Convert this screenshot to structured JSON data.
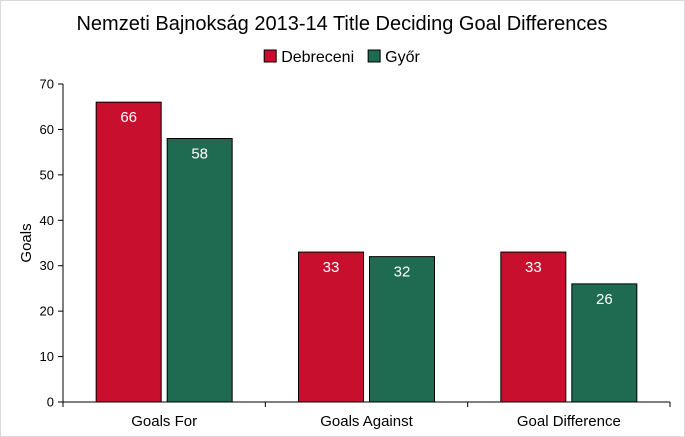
{
  "chart_data": {
    "type": "bar",
    "title": "Nemzeti Bajnokság 2013-14 Title Deciding Goal Differences",
    "xlabel": "",
    "ylabel": "Goals",
    "ylim": [
      0,
      70
    ],
    "yticks": [
      0,
      10,
      20,
      30,
      40,
      50,
      60,
      70
    ],
    "categories": [
      "Goals For",
      "Goals Against",
      "Goal Difference"
    ],
    "series": [
      {
        "name": "Debreceni",
        "color": "#c8102e",
        "values": [
          66,
          33,
          33
        ]
      },
      {
        "name": "Győr",
        "color": "#1e6b52",
        "values": [
          58,
          32,
          26
        ]
      }
    ],
    "legend_position": "top-center",
    "grid": false,
    "data_labels": true
  }
}
